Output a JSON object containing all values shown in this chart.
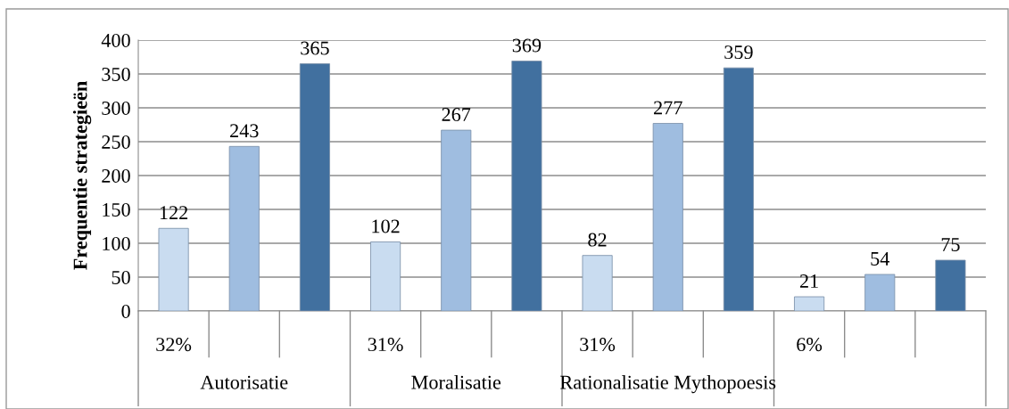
{
  "chart_data": {
    "type": "bar",
    "ylabel": "Frequentie strategieën",
    "categories": [
      "32%",
      null,
      null,
      "31%",
      null,
      null,
      "31%",
      null,
      null,
      "6%",
      null,
      null
    ],
    "values": [
      122,
      243,
      365,
      102,
      267,
      369,
      82,
      277,
      359,
      21,
      54,
      75
    ],
    "colors": [
      "#c9dcf0",
      "#9fbde0",
      "#41709f",
      "#c9dcf0",
      "#9fbde0",
      "#41709f",
      "#c9dcf0",
      "#9fbde0",
      "#41709f",
      "#c9dcf0",
      "#9fbde0",
      "#41709f"
    ],
    "annotations": [
      "Autorisatie",
      "Moralisatie",
      "Rationalisatie Mythopoesis"
    ],
    "ylim": [
      0,
      400
    ],
    "yticks": [
      0,
      50,
      100,
      150,
      200,
      250,
      300,
      350,
      400
    ],
    "grid": "y",
    "data_labels": true,
    "legend": false
  }
}
